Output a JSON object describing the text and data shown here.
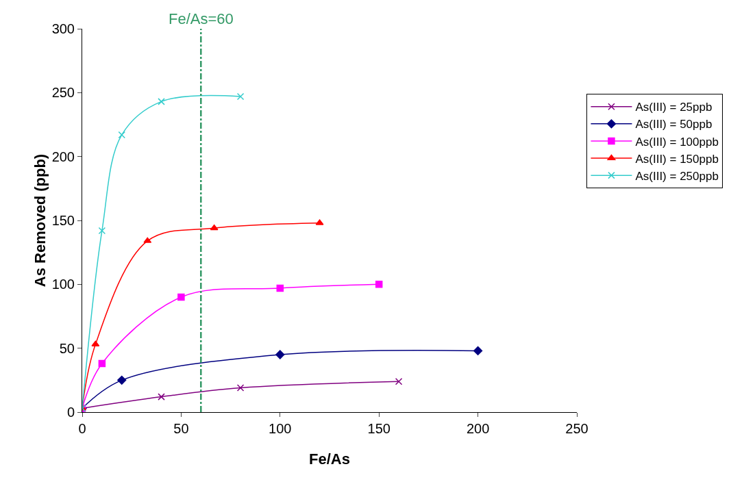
{
  "chart_data": {
    "type": "line",
    "xlabel": "Fe/As",
    "ylabel": "As Removed (ppb)",
    "series": [
      {
        "name": "As(III) = 25ppb",
        "color": "#800080",
        "marker": "cross",
        "x": [
          0,
          40,
          80,
          160
        ],
        "values": [
          3,
          12,
          19,
          24
        ]
      },
      {
        "name": "As(III) = 50ppb",
        "color": "#000080",
        "marker": "diamond",
        "x": [
          0,
          20,
          100,
          200
        ],
        "values": [
          3,
          25,
          45,
          48
        ]
      },
      {
        "name": "As(III) = 100ppb",
        "color": "#ff00ff",
        "marker": "square",
        "x": [
          0,
          10,
          50,
          100,
          150
        ],
        "values": [
          3,
          38,
          90,
          97,
          100
        ]
      },
      {
        "name": "As(III) = 150ppb",
        "color": "#ff0000",
        "marker": "triangle",
        "x": [
          0,
          6.7,
          33,
          66.7,
          120
        ],
        "values": [
          3,
          53,
          134,
          144,
          148
        ]
      },
      {
        "name": "As(III) = 250ppb",
        "color": "#33cccc",
        "marker": "cross",
        "x": [
          0,
          10,
          20,
          40,
          80
        ],
        "values": [
          3,
          142,
          217,
          243,
          247
        ]
      }
    ],
    "xlim": [
      0,
      250
    ],
    "xticks": [
      0,
      50,
      100,
      150,
      200,
      250
    ],
    "ylim": [
      0,
      300
    ],
    "yticks": [
      0,
      50,
      100,
      150,
      200,
      250,
      300
    ],
    "grid": false,
    "legend": "right",
    "ref_lines": [
      {
        "axis": "x",
        "value": 60,
        "label": "Fe/As=60",
        "color": "#339966",
        "line_style": "dashdot"
      }
    ]
  }
}
